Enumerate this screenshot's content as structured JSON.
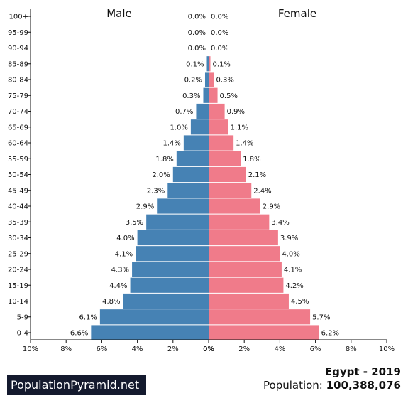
{
  "chart_data": {
    "type": "bar",
    "orientation": "horizontal",
    "layout": "population-pyramid",
    "title": "",
    "categories": [
      "100+",
      "95-99",
      "90-94",
      "85-89",
      "80-84",
      "75-79",
      "70-74",
      "65-69",
      "60-64",
      "55-59",
      "50-54",
      "45-49",
      "40-44",
      "35-39",
      "30-34",
      "25-29",
      "20-24",
      "15-19",
      "10-14",
      "5-9",
      "0-4"
    ],
    "series": [
      {
        "name": "Male",
        "color": "#4682b4",
        "values": [
          0.0,
          0.0,
          0.0,
          0.1,
          0.2,
          0.3,
          0.7,
          1.0,
          1.4,
          1.8,
          2.0,
          2.3,
          2.9,
          3.5,
          4.0,
          4.1,
          4.3,
          4.4,
          4.8,
          6.1,
          6.6
        ],
        "labels": [
          "0.0%",
          "0.0%",
          "0.0%",
          "0.1%",
          "0.2%",
          "0.3%",
          "0.7%",
          "1.0%",
          "1.4%",
          "1.8%",
          "2.0%",
          "2.3%",
          "2.9%",
          "3.5%",
          "4.0%",
          "4.1%",
          "4.3%",
          "4.4%",
          "4.8%",
          "6.1%",
          "6.6%"
        ]
      },
      {
        "name": "Female",
        "color": "#f07b8a",
        "values": [
          0.0,
          0.0,
          0.0,
          0.1,
          0.3,
          0.5,
          0.9,
          1.1,
          1.4,
          1.8,
          2.1,
          2.4,
          2.9,
          3.4,
          3.9,
          4.0,
          4.1,
          4.2,
          4.5,
          5.7,
          6.2
        ],
        "labels": [
          "0.0%",
          "0.0%",
          "0.0%",
          "0.1%",
          "0.3%",
          "0.5%",
          "0.9%",
          "1.1%",
          "1.4%",
          "1.8%",
          "2.1%",
          "2.4%",
          "2.9%",
          "3.4%",
          "3.9%",
          "4.0%",
          "4.1%",
          "4.2%",
          "4.5%",
          "5.7%",
          "6.2%"
        ]
      }
    ],
    "xlim": [
      0,
      10
    ],
    "xticks": [
      "10%",
      "8%",
      "6%",
      "4%",
      "2%",
      "0%",
      "0%",
      "2%",
      "4%",
      "6%",
      "8%",
      "10%"
    ],
    "grid": false
  },
  "branding": "PopulationPyramid.net",
  "country_title": "Egypt - 2019",
  "population_label": "Population:",
  "population_value": "100,388,076"
}
